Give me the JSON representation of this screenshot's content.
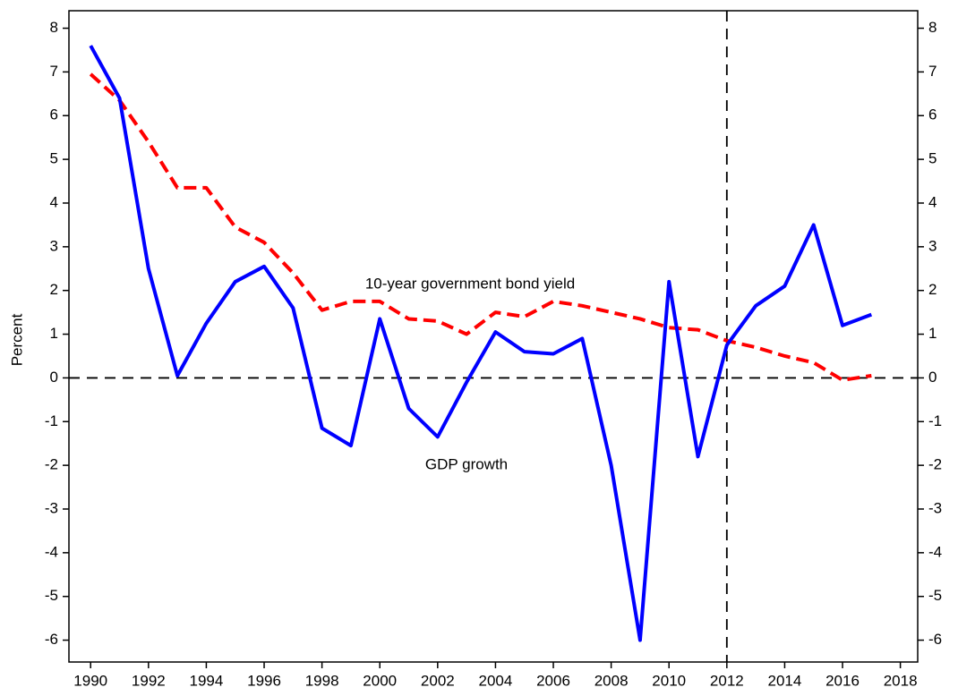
{
  "chart_data": {
    "type": "line",
    "y_label": "Percent",
    "annotations": [
      "10-year government bond yield",
      "GDP growth"
    ],
    "x": [
      1990,
      1991,
      1992,
      1993,
      1994,
      1995,
      1996,
      1997,
      1998,
      1999,
      2000,
      2001,
      2002,
      2003,
      2004,
      2005,
      2006,
      2007,
      2008,
      2009,
      2010,
      2011,
      2012,
      2013,
      2014,
      2015,
      2016,
      2017
    ],
    "series": [
      {
        "name": "GDP growth",
        "color": "#0000ff",
        "dash": false,
        "values": [
          7.6,
          6.4,
          2.5,
          0.05,
          1.25,
          2.2,
          2.55,
          1.6,
          -1.15,
          -1.55,
          1.35,
          -0.7,
          -1.35,
          -0.1,
          1.05,
          0.6,
          0.55,
          0.9,
          -2.0,
          -6.0,
          2.2,
          -1.8,
          0.75,
          1.65,
          2.1,
          3.5,
          1.2,
          1.45
        ]
      },
      {
        "name": "10-year government bond yield",
        "color": "#ff0000",
        "dash": true,
        "values": [
          6.95,
          6.35,
          5.4,
          4.35,
          4.35,
          3.45,
          3.1,
          2.4,
          1.55,
          1.75,
          1.75,
          1.35,
          1.3,
          1.0,
          1.5,
          1.4,
          1.75,
          1.65,
          1.5,
          1.35,
          1.15,
          1.1,
          0.85,
          0.7,
          0.5,
          0.35,
          -0.05,
          0.05
        ]
      }
    ],
    "xlim": [
      1989.25,
      2018.6
    ],
    "xticks": [
      1990,
      1992,
      1994,
      1996,
      1998,
      2000,
      2002,
      2004,
      2006,
      2008,
      2010,
      2012,
      2014,
      2016,
      2018
    ],
    "ylim": [
      -6.5,
      8.4
    ],
    "yticks": [
      -6,
      -5,
      -4,
      -3,
      -2,
      -1,
      0,
      1,
      2,
      3,
      4,
      5,
      6,
      7,
      8
    ],
    "y2lim": [
      -6.5,
      8.4
    ],
    "y2ticks": [
      -6,
      -5,
      -4,
      -3,
      -2,
      -1,
      0,
      1,
      2,
      3,
      4,
      5,
      6,
      7,
      8
    ],
    "vline": 2012,
    "hline": 0,
    "legend": false,
    "grid": false
  }
}
